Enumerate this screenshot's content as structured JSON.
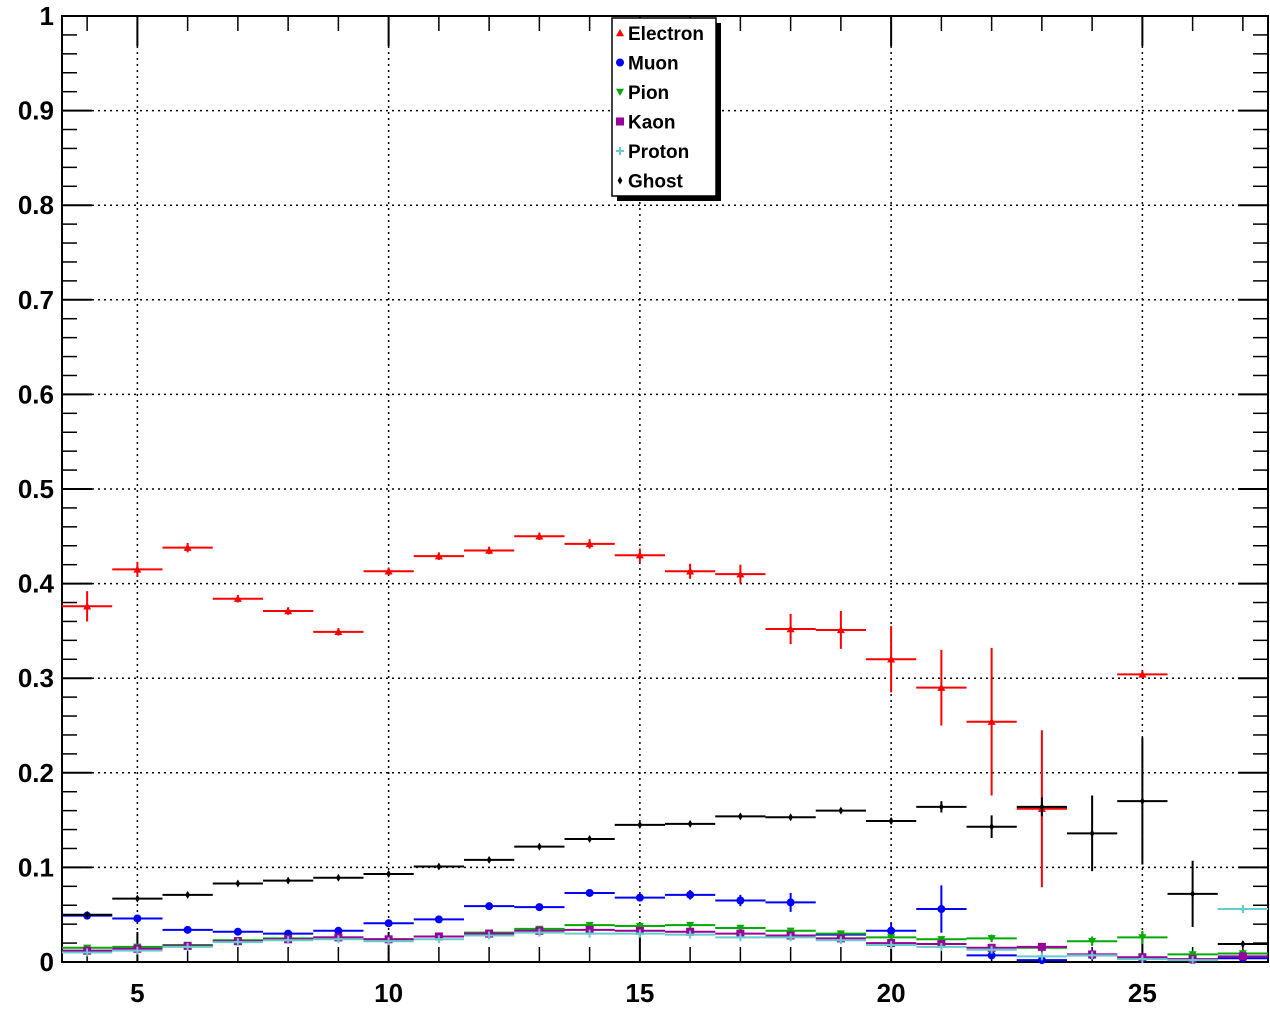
{
  "chart_data": {
    "type": "scatter",
    "title": "",
    "xlabel": "",
    "ylabel": "",
    "xlim": [
      3.5,
      27.5
    ],
    "ylim": [
      0,
      1
    ],
    "grid": true,
    "legend_position": "top-center",
    "x_ticks": [
      5,
      10,
      15,
      20,
      25
    ],
    "x_tick_labels": [
      "5",
      "10",
      "15",
      "20",
      "25"
    ],
    "y_ticks": [
      0,
      0.1,
      0.2,
      0.3,
      0.4,
      0.5,
      0.6,
      0.7,
      0.8,
      0.9,
      1
    ],
    "y_tick_labels": [
      "0",
      "0.1",
      "0.2",
      "0.3",
      "0.4",
      "0.5",
      "0.6",
      "0.7",
      "0.8",
      "0.9",
      "1"
    ],
    "x_bin_half_width": 0.5,
    "series": [
      {
        "name": "Electron",
        "color": "#ff0000",
        "marker": "triangle-up",
        "x": [
          4,
          5,
          6,
          7,
          8,
          9,
          10,
          11,
          12,
          13,
          14,
          15,
          16,
          17,
          18,
          19,
          20,
          21,
          22,
          23,
          25
        ],
        "y": [
          0.376,
          0.415,
          0.438,
          0.384,
          0.371,
          0.349,
          0.413,
          0.429,
          0.435,
          0.45,
          0.442,
          0.43,
          0.413,
          0.41,
          0.352,
          0.351,
          0.32,
          0.29,
          0.254,
          0.162,
          0.304
        ],
        "yerr": [
          0.016,
          0.008,
          0.005,
          0.004,
          0.004,
          0.004,
          0.004,
          0.004,
          0.004,
          0.004,
          0.005,
          0.007,
          0.008,
          0.01,
          0.016,
          0.02,
          0.035,
          0.04,
          0.078,
          0.083,
          0.004
        ]
      },
      {
        "name": "Muon",
        "color": "#0000ff",
        "marker": "circle",
        "x": [
          4,
          5,
          6,
          7,
          8,
          9,
          10,
          11,
          12,
          13,
          14,
          15,
          16,
          17,
          18,
          19,
          20,
          21,
          22,
          23,
          24,
          25,
          26,
          27
        ],
        "y": [
          0.049,
          0.046,
          0.034,
          0.032,
          0.03,
          0.033,
          0.041,
          0.045,
          0.059,
          0.058,
          0.073,
          0.068,
          0.071,
          0.065,
          0.063,
          0.029,
          0.033,
          0.056,
          0.007,
          0.002,
          0.007,
          0.004,
          0.002,
          0.004
        ],
        "yerr": [
          0.002,
          0.002,
          0.002,
          0.002,
          0.002,
          0.002,
          0.002,
          0.002,
          0.002,
          0.002,
          0.003,
          0.004,
          0.005,
          0.006,
          0.01,
          0.003,
          0.008,
          0.025,
          0.003,
          0.002,
          0.002,
          0.002,
          0.001,
          0.002
        ]
      },
      {
        "name": "Pion",
        "color": "#00aa00",
        "marker": "triangle-down",
        "x": [
          4,
          5,
          6,
          7,
          8,
          9,
          10,
          11,
          12,
          13,
          14,
          15,
          16,
          17,
          18,
          19,
          20,
          21,
          22,
          23,
          24,
          25,
          26,
          27
        ],
        "y": [
          0.015,
          0.016,
          0.018,
          0.023,
          0.025,
          0.026,
          0.024,
          0.027,
          0.031,
          0.035,
          0.039,
          0.038,
          0.039,
          0.036,
          0.033,
          0.03,
          0.026,
          0.024,
          0.025,
          0.015,
          0.022,
          0.026,
          0.008,
          0.009
        ],
        "yerr": [
          0.001,
          0.001,
          0.001,
          0.001,
          0.001,
          0.001,
          0.001,
          0.001,
          0.001,
          0.001,
          0.002,
          0.002,
          0.002,
          0.002,
          0.002,
          0.002,
          0.003,
          0.003,
          0.004,
          0.004,
          0.005,
          0.007,
          0.004,
          0.004
        ]
      },
      {
        "name": "Kaon",
        "color": "#990099",
        "marker": "square",
        "x": [
          4,
          5,
          6,
          7,
          8,
          9,
          10,
          11,
          12,
          13,
          14,
          15,
          16,
          17,
          18,
          19,
          20,
          21,
          22,
          23,
          24,
          25,
          26,
          27
        ],
        "y": [
          0.012,
          0.014,
          0.017,
          0.022,
          0.024,
          0.026,
          0.024,
          0.027,
          0.03,
          0.033,
          0.034,
          0.033,
          0.032,
          0.03,
          0.028,
          0.025,
          0.02,
          0.019,
          0.015,
          0.016,
          0.008,
          0.005,
          0.003,
          0.006
        ],
        "yerr": [
          0.001,
          0.001,
          0.001,
          0.001,
          0.001,
          0.001,
          0.001,
          0.001,
          0.001,
          0.001,
          0.001,
          0.001,
          0.002,
          0.002,
          0.002,
          0.002,
          0.002,
          0.003,
          0.003,
          0.003,
          0.002,
          0.002,
          0.002,
          0.002
        ]
      },
      {
        "name": "Proton",
        "color": "#66cccc",
        "marker": "cross",
        "x": [
          4,
          5,
          6,
          7,
          8,
          9,
          10,
          11,
          12,
          13,
          14,
          15,
          16,
          17,
          18,
          19,
          20,
          21,
          22,
          23,
          24,
          25,
          26,
          27
        ],
        "y": [
          0.01,
          0.012,
          0.016,
          0.021,
          0.023,
          0.024,
          0.022,
          0.024,
          0.028,
          0.031,
          0.03,
          0.03,
          0.029,
          0.026,
          0.026,
          0.023,
          0.018,
          0.016,
          0.013,
          0.006,
          0.007,
          0.003,
          0.002,
          0.056
        ],
        "yerr": [
          0.001,
          0.001,
          0.001,
          0.001,
          0.001,
          0.001,
          0.001,
          0.001,
          0.001,
          0.001,
          0.001,
          0.001,
          0.002,
          0.002,
          0.002,
          0.002,
          0.002,
          0.003,
          0.003,
          0.002,
          0.002,
          0.002,
          0.001,
          0.003
        ]
      },
      {
        "name": "Ghost",
        "color": "#000000",
        "marker": "diamond",
        "x": [
          4,
          5,
          6,
          7,
          8,
          9,
          10,
          11,
          12,
          13,
          14,
          15,
          16,
          17,
          18,
          19,
          20,
          21,
          22,
          23,
          24,
          25,
          26,
          27
        ],
        "y": [
          0.05,
          0.067,
          0.071,
          0.083,
          0.086,
          0.089,
          0.093,
          0.101,
          0.108,
          0.122,
          0.13,
          0.145,
          0.146,
          0.154,
          0.153,
          0.16,
          0.149,
          0.164,
          0.143,
          0.164,
          0.136,
          0.17,
          0.072,
          0.019
        ],
        "yerr": [
          0.002,
          0.002,
          0.002,
          0.002,
          0.002,
          0.002,
          0.002,
          0.002,
          0.002,
          0.002,
          0.002,
          0.002,
          0.002,
          0.002,
          0.002,
          0.002,
          0.003,
          0.006,
          0.012,
          0.01,
          0.04,
          0.067,
          0.035,
          0.003
        ]
      }
    ]
  }
}
